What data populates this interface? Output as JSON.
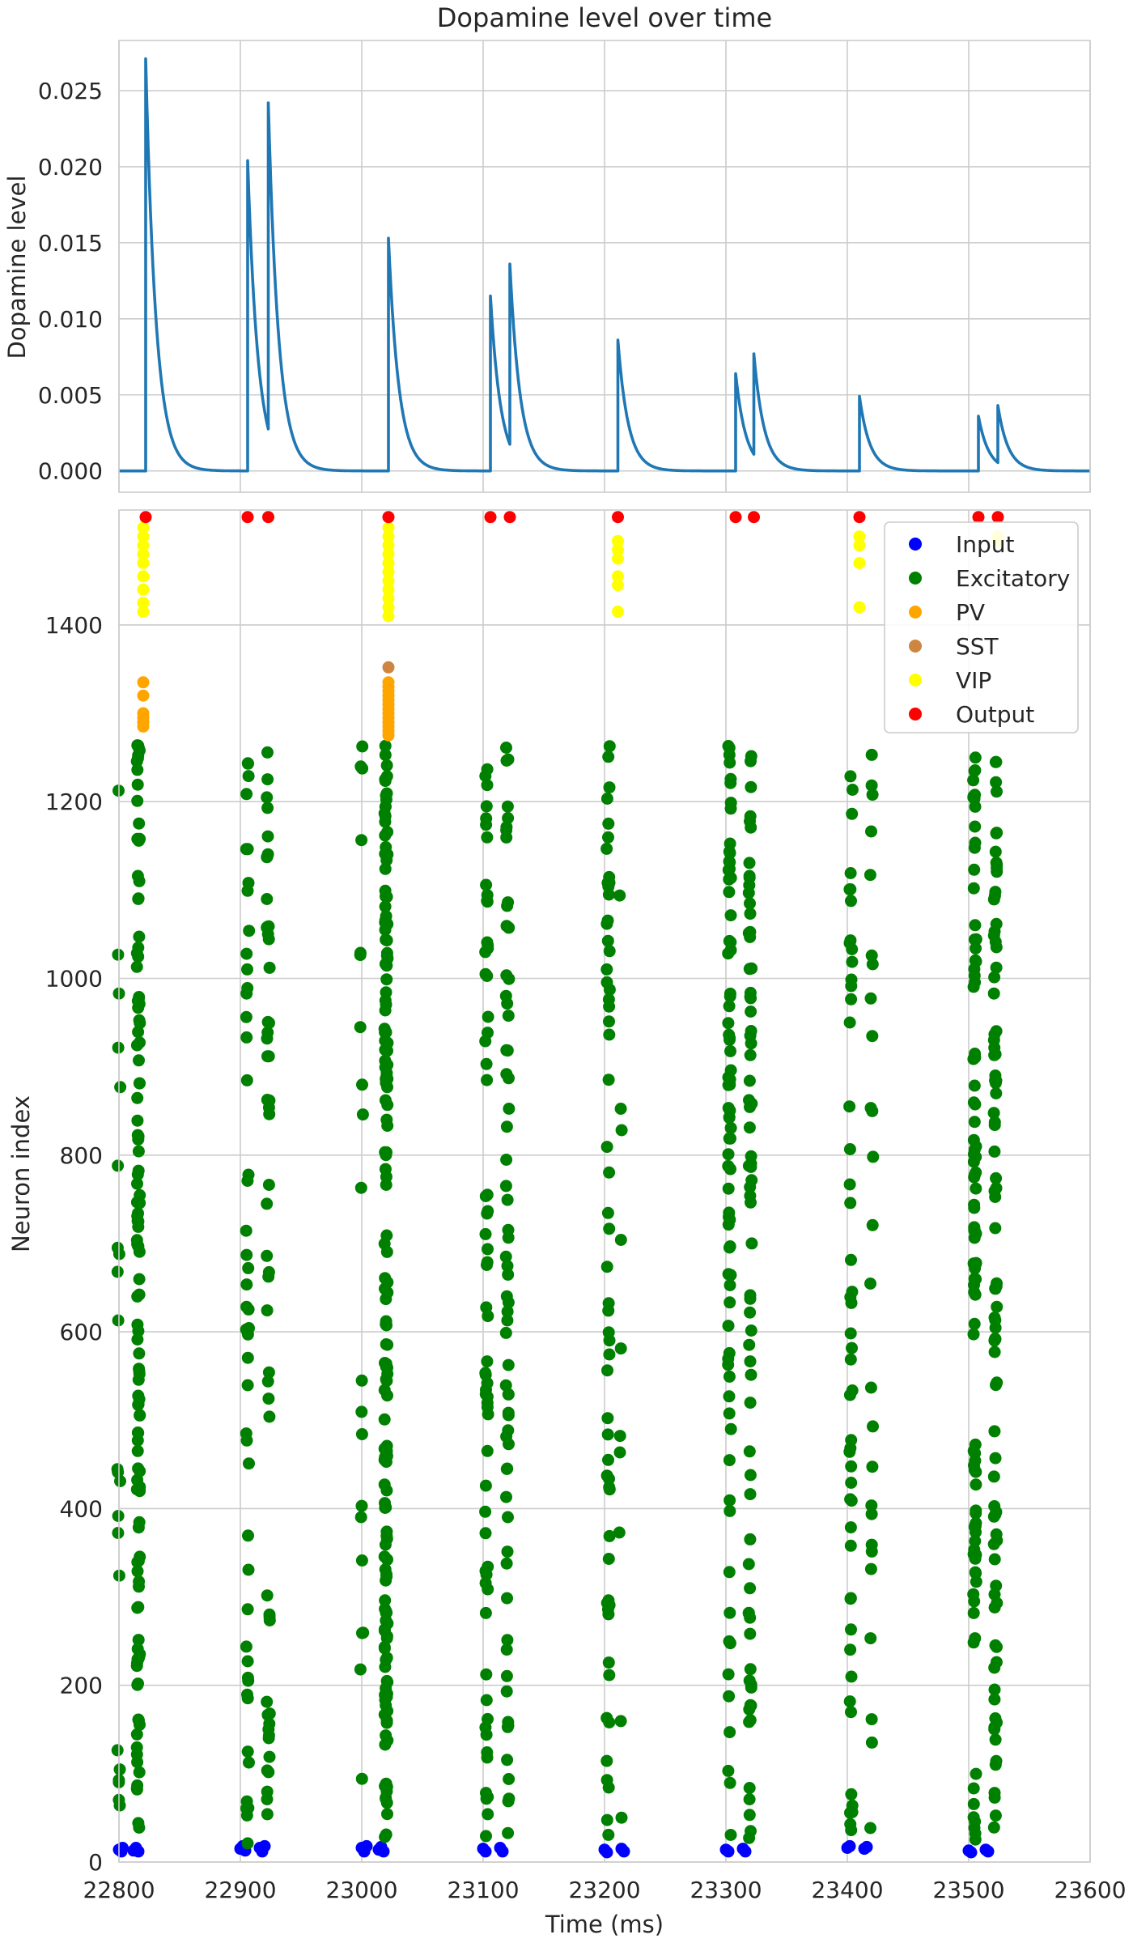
{
  "chart_data": [
    {
      "type": "line",
      "title": "Dopamine level over time",
      "xlabel": "",
      "ylabel": "Dopamine level",
      "xlim": [
        22800,
        23600
      ],
      "ylim": [
        -0.0014,
        0.0283
      ],
      "yticks": [
        "0.000",
        "0.005",
        "0.010",
        "0.015",
        "0.020",
        "0.025"
      ],
      "grid": true,
      "decay_time_constant_ms": 8.5,
      "series": [
        {
          "color": "#1f77b4",
          "spikes": [
            {
              "x": 22822,
              "y": 0.0271
            },
            {
              "x": 22906,
              "y": 0.0204
            },
            {
              "x": 22923,
              "y": 0.0242
            },
            {
              "x": 23022,
              "y": 0.0153
            },
            {
              "x": 23106,
              "y": 0.0115
            },
            {
              "x": 23122,
              "y": 0.0136
            },
            {
              "x": 23211,
              "y": 0.0086
            },
            {
              "x": 23308,
              "y": 0.0064
            },
            {
              "x": 23323,
              "y": 0.0077
            },
            {
              "x": 23410,
              "y": 0.0049
            },
            {
              "x": 23508,
              "y": 0.0036
            },
            {
              "x": 23524,
              "y": 0.0043
            }
          ]
        }
      ]
    },
    {
      "type": "scatter",
      "title": "",
      "xlabel": "Time (ms)",
      "ylabel": "Neuron index",
      "xlim": [
        22800,
        23600
      ],
      "ylim": [
        0,
        1530
      ],
      "xticks": [
        "22800",
        "22900",
        "23000",
        "23100",
        "23200",
        "23300",
        "23400",
        "23500",
        "23600"
      ],
      "yticks": [
        "0",
        "200",
        "400",
        "600",
        "800",
        "1000",
        "1200",
        "1400"
      ],
      "grid": true,
      "legend_position": "top-right",
      "series": [
        {
          "name": "Input",
          "color": "#0000ff",
          "index_range": [
            0,
            20
          ],
          "points": [
            [
              22800,
              14
            ],
            [
              22802,
              12
            ],
            [
              22803,
              16
            ],
            [
              22812,
              13
            ],
            [
              22814,
              16
            ],
            [
              22816,
              12
            ],
            [
              22900,
              15
            ],
            [
              22902,
              18
            ],
            [
              22904,
              13
            ],
            [
              22916,
              16
            ],
            [
              22918,
              12
            ],
            [
              22920,
              18
            ],
            [
              23000,
              16
            ],
            [
              23002,
              12
            ],
            [
              23004,
              18
            ],
            [
              23014,
              14
            ],
            [
              23016,
              17
            ],
            [
              23018,
              12
            ],
            [
              23100,
              15
            ],
            [
              23102,
              12
            ],
            [
              23114,
              16
            ],
            [
              23116,
              12
            ],
            [
              23200,
              14
            ],
            [
              23202,
              11
            ],
            [
              23214,
              15
            ],
            [
              23216,
              12
            ],
            [
              23300,
              14
            ],
            [
              23302,
              12
            ],
            [
              23314,
              15
            ],
            [
              23316,
              12
            ],
            [
              23400,
              16
            ],
            [
              23402,
              18
            ],
            [
              23414,
              15
            ],
            [
              23416,
              17
            ],
            [
              23500,
              13
            ],
            [
              23502,
              11
            ],
            [
              23514,
              14
            ],
            [
              23516,
              12
            ]
          ]
        },
        {
          "name": "Excitatory",
          "color": "#008000",
          "index_range": [
            20,
            1265
          ],
          "columns": [
            {
              "x": 22800,
              "count": 22,
              "seed": 11
            },
            {
              "x": 22816,
              "count": 120,
              "seed": 12
            },
            {
              "x": 22906,
              "count": 48,
              "seed": 21
            },
            {
              "x": 22923,
              "count": 52,
              "seed": 22
            },
            {
              "x": 23000,
              "count": 20,
              "seed": 31
            },
            {
              "x": 23020,
              "count": 160,
              "seed": 32
            },
            {
              "x": 23103,
              "count": 64,
              "seed": 41
            },
            {
              "x": 23120,
              "count": 64,
              "seed": 42
            },
            {
              "x": 23203,
              "count": 58,
              "seed": 51
            },
            {
              "x": 23213,
              "count": 10,
              "seed": 52
            },
            {
              "x": 23303,
              "count": 78,
              "seed": 61
            },
            {
              "x": 23320,
              "count": 72,
              "seed": 62
            },
            {
              "x": 23403,
              "count": 50,
              "seed": 71
            },
            {
              "x": 23420,
              "count": 26,
              "seed": 72
            },
            {
              "x": 23505,
              "count": 96,
              "seed": 81
            },
            {
              "x": 23522,
              "count": 90,
              "seed": 82
            }
          ]
        },
        {
          "name": "PV",
          "color": "#ffa500",
          "index_range": [
            1265,
            1345
          ],
          "points": [
            [
              22820,
              1285
            ],
            [
              22820,
              1290
            ],
            [
              22820,
              1295
            ],
            [
              22820,
              1300
            ],
            [
              22820,
              1320
            ],
            [
              22820,
              1335
            ],
            [
              23022,
              1275
            ],
            [
              23022,
              1280
            ],
            [
              23022,
              1285
            ],
            [
              23022,
              1290
            ],
            [
              23022,
              1295
            ],
            [
              23022,
              1300
            ],
            [
              23022,
              1305
            ],
            [
              23022,
              1310
            ],
            [
              23022,
              1315
            ],
            [
              23022,
              1320
            ],
            [
              23022,
              1325
            ],
            [
              23022,
              1330
            ],
            [
              23022,
              1335
            ]
          ]
        },
        {
          "name": "SST",
          "color": "#cd853f",
          "index_range": [
            1345,
            1355
          ],
          "points": [
            [
              23022,
              1352
            ]
          ]
        },
        {
          "name": "VIP",
          "color": "#ffff00",
          "index_range": [
            1405,
            1515
          ],
          "points": [
            [
              22820,
              1415
            ],
            [
              22820,
              1425
            ],
            [
              22820,
              1440
            ],
            [
              22820,
              1455
            ],
            [
              22820,
              1470
            ],
            [
              22820,
              1480
            ],
            [
              22820,
              1490
            ],
            [
              22820,
              1500
            ],
            [
              22820,
              1510
            ],
            [
              23022,
              1410
            ],
            [
              23022,
              1420
            ],
            [
              23022,
              1430
            ],
            [
              23022,
              1440
            ],
            [
              23022,
              1450
            ],
            [
              23022,
              1460
            ],
            [
              23022,
              1470
            ],
            [
              23022,
              1480
            ],
            [
              23022,
              1490
            ],
            [
              23022,
              1500
            ],
            [
              23022,
              1510
            ],
            [
              23211,
              1415
            ],
            [
              23211,
              1445
            ],
            [
              23211,
              1455
            ],
            [
              23211,
              1475
            ],
            [
              23211,
              1485
            ],
            [
              23211,
              1495
            ],
            [
              23410,
              1420
            ],
            [
              23410,
              1470
            ],
            [
              23410,
              1490
            ],
            [
              23410,
              1500
            ],
            [
              23524,
              1495
            ],
            [
              23524,
              1500
            ]
          ]
        },
        {
          "name": "Output",
          "color": "#ff0000",
          "index_range": [
            1520,
            1525
          ],
          "points": [
            [
              22822,
              1522
            ],
            [
              22906,
              1522
            ],
            [
              22923,
              1522
            ],
            [
              23022,
              1522
            ],
            [
              23106,
              1522
            ],
            [
              23122,
              1522
            ],
            [
              23211,
              1522
            ],
            [
              23308,
              1522
            ],
            [
              23323,
              1522
            ],
            [
              23410,
              1522
            ],
            [
              23508,
              1522
            ],
            [
              23524,
              1522
            ]
          ]
        }
      ]
    }
  ]
}
